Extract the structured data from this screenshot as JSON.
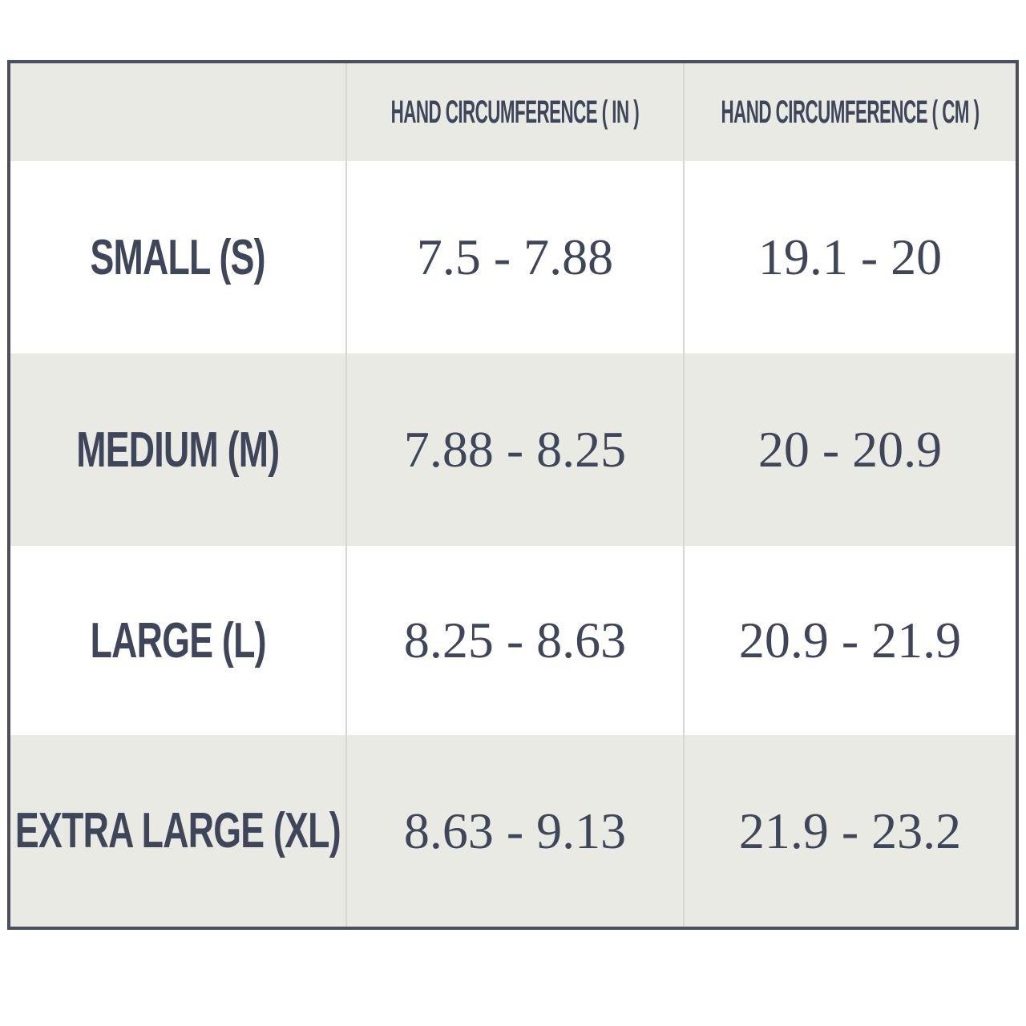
{
  "table": {
    "headers": [
      "",
      "HAND CIRCUMFERENCE ( IN )",
      "HAND CIRCUMFERENCE ( CM )"
    ],
    "rows": [
      {
        "size": "SMALL (S)",
        "inches": "7.5 - 7.88",
        "cm": "19.1 - 20"
      },
      {
        "size": "MEDIUM (M)",
        "inches": "7.88 - 8.25",
        "cm": "20 - 20.9"
      },
      {
        "size": "LARGE (L)",
        "inches": "8.25 - 8.63",
        "cm": "20.9 - 21.9"
      },
      {
        "size": "EXTRA LARGE (XL)",
        "inches": "8.63 - 9.13",
        "cm": "21.9 - 23.2"
      }
    ]
  },
  "colors": {
    "border": "#4a4f60",
    "text": "#404659",
    "shaded_row": "#e9eae3",
    "white_row": "#ffffff"
  }
}
